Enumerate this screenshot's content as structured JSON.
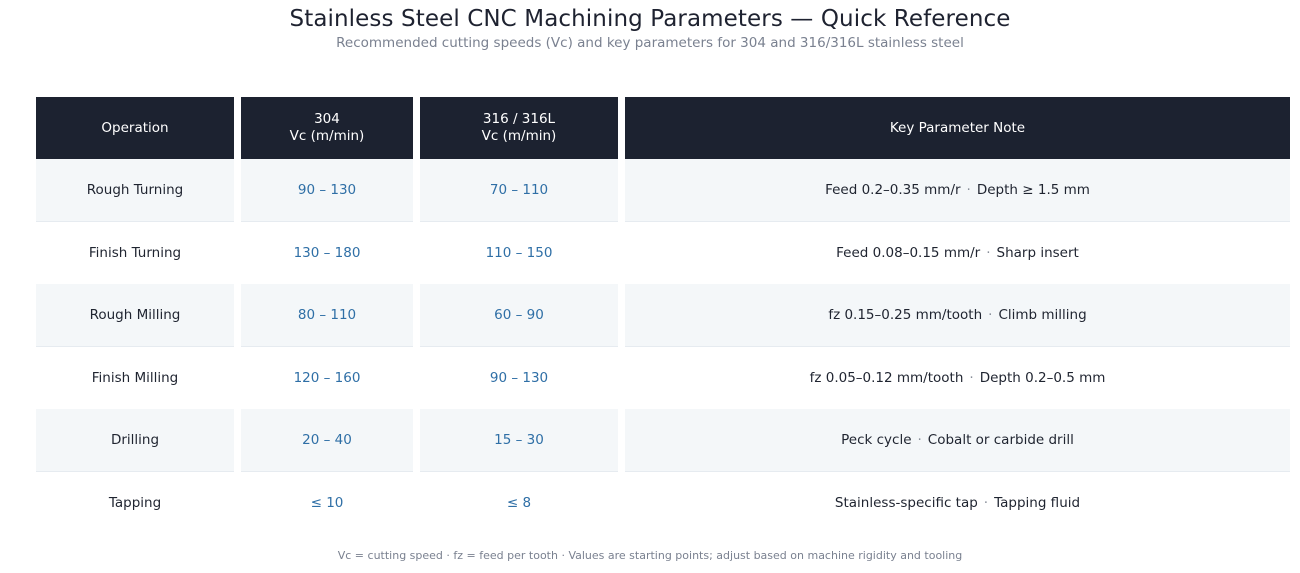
{
  "title": "Stainless Steel CNC Machining Parameters — Quick Reference",
  "subtitle": "Recommended cutting speeds (Vc) and key parameters for 304 and 316/316L stainless steel",
  "table": {
    "headers": [
      {
        "line1": "Operation",
        "line2": ""
      },
      {
        "line1": "304",
        "line2": "Vc (m/min)"
      },
      {
        "line1": "316 / 316L",
        "line2": "Vc (m/min)"
      },
      {
        "line1": "Key Parameter Note",
        "line2": ""
      }
    ],
    "rows": [
      {
        "operation": "Rough Turning",
        "vc_304": "90 – 130",
        "vc_316": "70 – 110",
        "note_a": "Feed 0.2–0.35 mm/r",
        "sep": "·",
        "note_b": "Depth ≥ 1.5 mm"
      },
      {
        "operation": "Finish Turning",
        "vc_304": "130 – 180",
        "vc_316": "110 – 150",
        "note_a": "Feed 0.08–0.15 mm/r",
        "sep": "·",
        "note_b": "Sharp insert"
      },
      {
        "operation": "Rough Milling",
        "vc_304": "80 – 110",
        "vc_316": "60 – 90",
        "note_a": "fz 0.15–0.25 mm/tooth",
        "sep": "·",
        "note_b": "Climb milling"
      },
      {
        "operation": "Finish Milling",
        "vc_304": "120 – 160",
        "vc_316": "90 – 130",
        "note_a": "fz 0.05–0.12 mm/tooth",
        "sep": "·",
        "note_b": "Depth 0.2–0.5 mm"
      },
      {
        "operation": "Drilling",
        "vc_304": "20 – 40",
        "vc_316": "15 – 30",
        "note_a": "Peck cycle",
        "sep": "·",
        "note_b": "Cobalt or carbide drill"
      },
      {
        "operation": "Tapping",
        "vc_304": "≤ 10",
        "vc_316": "≤ 8",
        "note_a": "Stainless-specific tap",
        "sep": "·",
        "note_b": "Tapping fluid"
      }
    ]
  },
  "footnote": "Vc = cutting speed  ·  fz = feed per tooth  ·  Values are starting points; adjust based on machine rigidity and tooling",
  "colors": {
    "header_bg": "#1c2230",
    "header_text": "#ffffff",
    "value_text": "#2f6fa6",
    "row_alt_bg": "#f4f7f9"
  }
}
